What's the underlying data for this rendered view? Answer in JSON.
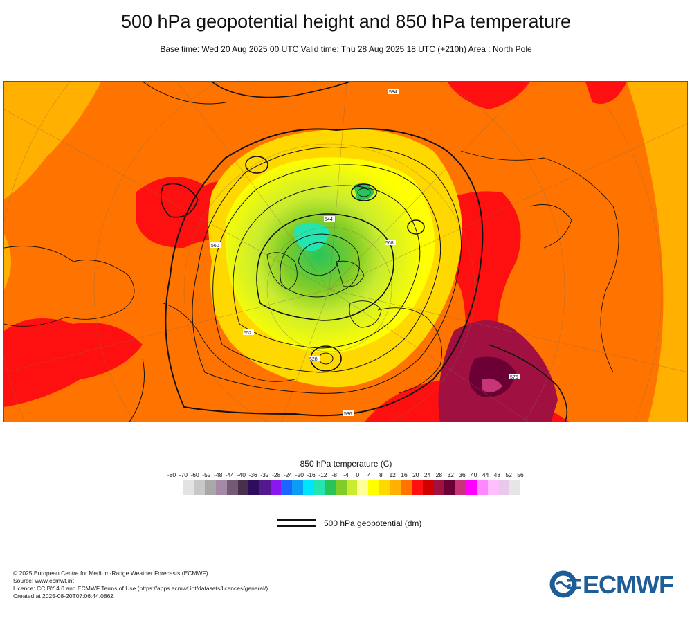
{
  "header": {
    "title": "500 hPa geopotential height and 850 hPa temperature",
    "subtitle": "Base time: Wed 20 Aug 2025 00 UTC Valid time: Thu 28 Aug 2025 18 UTC (+210h) Area : North Pole"
  },
  "map": {
    "projection": "polar stereographic",
    "area": "North Pole",
    "contour_labels": [
      "552",
      "560",
      "568",
      "576",
      "584",
      "544",
      "536",
      "528"
    ]
  },
  "temperature_legend": {
    "title": "850 hPa temperature (C)",
    "ticks": [
      "-80",
      "-70",
      "-60",
      "-52",
      "-48",
      "-44",
      "-40",
      "-36",
      "-32",
      "-28",
      "-24",
      "-20",
      "-16",
      "-12",
      "-8",
      "-4",
      "0",
      "4",
      "8",
      "12",
      "16",
      "20",
      "24",
      "28",
      "32",
      "36",
      "40",
      "44",
      "48",
      "52",
      "56"
    ],
    "colors": [
      "#e3e3e3",
      "#c8c8c8",
      "#a8a8a8",
      "#a689a6",
      "#755a75",
      "#4a2f4a",
      "#2e0d5e",
      "#54188f",
      "#8a16f0",
      "#1a66ff",
      "#0b9cf5",
      "#00e5ff",
      "#24e5b0",
      "#28c45a",
      "#80cc28",
      "#c9ec30",
      "#ffff9a",
      "#ffff00",
      "#ffd800",
      "#ffb000",
      "#ff7400",
      "#ff1010",
      "#d10000",
      "#a01040",
      "#6b0034",
      "#c83478",
      "#ff00ff",
      "#ff88ff",
      "#ffbfff",
      "#e9c9e9",
      "#e6e6e6"
    ]
  },
  "geopotential_legend": {
    "label": "500 hPa geopotential (dm)"
  },
  "footer": {
    "copyright": "© 2025 European Centre for Medium-Range Weather Forecasts (ECMWF)",
    "source": "Source: www.ecmwf.int",
    "licence": "Licence: CC BY 4.0 and ECMWF Terms of Use (https://apps.ecmwf.int/datasets/licences/general/)",
    "created": "Created at 2025-08-20T07:06:44.086Z"
  },
  "logo": {
    "text": "ECMWF",
    "color": "#1e5d96"
  }
}
